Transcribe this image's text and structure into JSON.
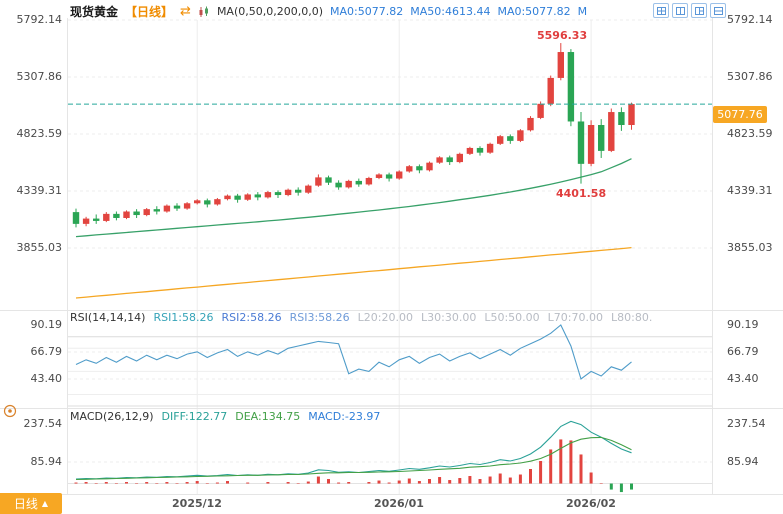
{
  "header": {
    "instrument": "现货黄金",
    "timeframe": "【日线】",
    "ma_truncated": "M",
    "layout_buttons": [
      "layout-2x2",
      "layout-2col",
      "layout-one-two",
      "layout-2row"
    ]
  },
  "icons": {
    "switch": "⇄",
    "up_triangle": "▲"
  },
  "footer": {
    "timeframe_button": "日线"
  },
  "colors": {
    "up": "#e2443f",
    "down": "#2aa554",
    "ma50": "#38a169",
    "ma200": "#f5a623",
    "price_line": "#26a69a",
    "accent": "#f7a723",
    "timeframe_text": "#f08c00",
    "annotation": "#e03e3e",
    "rsi": "#4f9cc9",
    "rsi1": "#36a3b8",
    "rsi2": "#4b7bd4",
    "rsi3": "#6f9bd8",
    "diff": "#2aa198",
    "dea": "#43a047",
    "hist_pos": "#e2443f",
    "hist_neg": "#2aa554",
    "legend_blue": "#2f7ed8",
    "level_gray": "#b8bcc4"
  },
  "chart_data": [
    {
      "type": "candlestick",
      "title": "现货黄金 日线",
      "ma_settings": "MA(0,50,0,200,0,0)",
      "ma_legend": [
        "MA0:5077.82",
        "MA50:4613.44",
        "MA0:5077.82"
      ],
      "yticks": [
        "5792.14",
        "5307.86",
        "4823.59",
        "4339.31",
        "3855.03"
      ],
      "ylim": [
        3345,
        5792.14
      ],
      "current_price": "5077.76",
      "annotations": [
        {
          "text": "5596.33",
          "type": "high",
          "index": 48
        },
        {
          "text": "4401.58",
          "type": "low",
          "index": 50
        }
      ],
      "x_axis": {
        "labels": [
          "2025/12",
          "2026/01",
          "2026/02"
        ],
        "tick_indices": [
          12,
          32,
          51
        ]
      },
      "candles": [
        [
          4160,
          4190,
          4030,
          4060
        ],
        [
          4060,
          4120,
          4040,
          4105
        ],
        [
          4105,
          4140,
          4060,
          4085
        ],
        [
          4085,
          4160,
          4075,
          4145
        ],
        [
          4145,
          4165,
          4090,
          4110
        ],
        [
          4110,
          4175,
          4100,
          4165
        ],
        [
          4165,
          4185,
          4110,
          4135
        ],
        [
          4135,
          4195,
          4125,
          4185
        ],
        [
          4185,
          4210,
          4140,
          4165
        ],
        [
          4165,
          4225,
          4155,
          4215
        ],
        [
          4215,
          4235,
          4170,
          4190
        ],
        [
          4190,
          4245,
          4180,
          4235
        ],
        [
          4235,
          4270,
          4225,
          4260
        ],
        [
          4260,
          4275,
          4200,
          4225
        ],
        [
          4225,
          4280,
          4215,
          4270
        ],
        [
          4270,
          4310,
          4260,
          4300
        ],
        [
          4300,
          4315,
          4240,
          4265
        ],
        [
          4265,
          4320,
          4255,
          4310
        ],
        [
          4310,
          4330,
          4260,
          4285
        ],
        [
          4285,
          4340,
          4275,
          4330
        ],
        [
          4330,
          4345,
          4280,
          4305
        ],
        [
          4305,
          4360,
          4295,
          4350
        ],
        [
          4350,
          4370,
          4300,
          4325
        ],
        [
          4325,
          4395,
          4315,
          4385
        ],
        [
          4385,
          4480,
          4375,
          4455
        ],
        [
          4455,
          4470,
          4390,
          4410
        ],
        [
          4410,
          4430,
          4350,
          4370
        ],
        [
          4370,
          4435,
          4360,
          4425
        ],
        [
          4425,
          4445,
          4375,
          4395
        ],
        [
          4395,
          4460,
          4385,
          4450
        ],
        [
          4450,
          4490,
          4440,
          4480
        ],
        [
          4480,
          4495,
          4420,
          4445
        ],
        [
          4445,
          4515,
          4435,
          4505
        ],
        [
          4505,
          4560,
          4495,
          4550
        ],
        [
          4550,
          4565,
          4490,
          4515
        ],
        [
          4515,
          4590,
          4505,
          4580
        ],
        [
          4580,
          4635,
          4570,
          4625
        ],
        [
          4625,
          4640,
          4560,
          4585
        ],
        [
          4585,
          4665,
          4575,
          4655
        ],
        [
          4655,
          4715,
          4645,
          4705
        ],
        [
          4705,
          4720,
          4640,
          4665
        ],
        [
          4665,
          4750,
          4655,
          4740
        ],
        [
          4740,
          4815,
          4730,
          4805
        ],
        [
          4805,
          4820,
          4740,
          4765
        ],
        [
          4765,
          4865,
          4755,
          4855
        ],
        [
          4855,
          4975,
          4845,
          4960
        ],
        [
          4960,
          5100,
          4950,
          5080
        ],
        [
          5080,
          5320,
          5060,
          5300
        ],
        [
          5300,
          5596.33,
          5280,
          5520
        ],
        [
          5520,
          5545,
          4890,
          4930
        ],
        [
          4930,
          5010,
          4401.58,
          4570
        ],
        [
          4570,
          4940,
          4550,
          4900
        ],
        [
          4900,
          4950,
          4620,
          4680
        ],
        [
          4680,
          5040,
          4670,
          5010
        ],
        [
          5010,
          5050,
          4850,
          4900
        ],
        [
          4900,
          5090,
          4860,
          5077.76
        ]
      ],
      "ma50": [
        3952,
        3959,
        3966,
        3973,
        3980,
        3987,
        3994,
        4001,
        4008,
        4015,
        4022,
        4029,
        4036,
        4043,
        4050,
        4057,
        4064,
        4071,
        4078,
        4085,
        4092,
        4100,
        4108,
        4116,
        4124,
        4133,
        4142,
        4151,
        4160,
        4169,
        4178,
        4188,
        4198,
        4208,
        4219,
        4230,
        4241,
        4253,
        4265,
        4277,
        4290,
        4303,
        4317,
        4331,
        4346,
        4362,
        4379,
        4397,
        4416,
        4436,
        4457,
        4479,
        4502,
        4537,
        4573,
        4613.44
      ],
      "ma200": [
        3430,
        3438,
        3446,
        3453,
        3461,
        3469,
        3477,
        3484,
        3492,
        3500,
        3508,
        3516,
        3523,
        3531,
        3539,
        3547,
        3554,
        3562,
        3570,
        3578,
        3586,
        3593,
        3601,
        3609,
        3617,
        3625,
        3632,
        3640,
        3648,
        3656,
        3663,
        3671,
        3679,
        3687,
        3695,
        3702,
        3710,
        3718,
        3726,
        3733,
        3741,
        3749,
        3757,
        3765,
        3772,
        3780,
        3788,
        3796,
        3803,
        3811,
        3819,
        3827,
        3835,
        3842,
        3850,
        3858
      ]
    },
    {
      "type": "line",
      "name": "RSI(14,14,14)",
      "legend": [
        "RSI1:58.26",
        "RSI2:58.26",
        "RSI3:58.26"
      ],
      "levels_legend": [
        "L20:20.00",
        "L30:30.00",
        "L50:50.00",
        "L70:70.00",
        "L80:80."
      ],
      "yticks": [
        "90.19",
        "66.79",
        "43.40"
      ],
      "levels": [
        20,
        30,
        50,
        70,
        80
      ],
      "values": [
        56,
        60,
        57,
        62,
        58,
        63,
        59,
        64,
        60,
        64,
        61,
        65,
        67,
        62,
        66,
        69,
        63,
        67,
        64,
        68,
        65,
        70,
        72,
        74,
        76,
        75,
        74,
        48,
        52,
        50,
        58,
        54,
        60,
        63,
        57,
        62,
        65,
        59,
        63,
        66,
        61,
        65,
        69,
        64,
        70,
        74,
        78,
        83,
        90.19,
        72,
        43.4,
        50,
        46,
        54,
        51,
        58.26
      ]
    },
    {
      "type": "macd",
      "name": "MACD(26,12,9)",
      "legend": [
        "DIFF:122.77",
        "DEA:134.75",
        "MACD:-23.97"
      ],
      "yticks": [
        "237.54",
        "85.94"
      ],
      "diff": [
        18,
        20,
        19,
        22,
        21,
        24,
        23,
        26,
        25,
        28,
        27,
        30,
        33,
        30,
        32,
        36,
        32,
        35,
        33,
        37,
        35,
        39,
        37,
        42,
        55,
        52,
        45,
        47,
        44,
        48,
        52,
        49,
        54,
        60,
        57,
        63,
        70,
        66,
        72,
        80,
        76,
        84,
        95,
        90,
        100,
        118,
        145,
        185,
        228,
        248,
        235,
        205,
        185,
        160,
        138,
        122.77
      ],
      "dea": [
        16,
        17,
        18,
        19,
        20,
        21,
        22,
        23,
        24,
        25,
        26,
        27,
        28,
        29,
        30,
        31,
        32,
        33,
        33,
        34,
        35,
        36,
        36,
        38,
        41,
        43,
        43,
        44,
        44,
        45,
        46,
        47,
        48,
        50,
        52,
        54,
        57,
        59,
        61,
        65,
        67,
        70,
        75,
        78,
        82,
        89,
        100,
        117,
        140,
        162,
        177,
        183,
        184,
        172,
        155,
        134.75
      ],
      "hist": [
        4,
        6,
        2,
        6,
        2,
        6,
        2,
        6,
        2,
        6,
        2,
        6,
        10,
        2,
        4,
        10,
        0,
        4,
        0,
        6,
        0,
        6,
        2,
        8,
        28,
        18,
        4,
        6,
        0,
        6,
        12,
        4,
        12,
        20,
        10,
        18,
        26,
        14,
        22,
        30,
        18,
        28,
        40,
        24,
        36,
        58,
        90,
        136,
        176,
        172,
        116,
        44,
        2,
        -24,
        -34,
        -23.97
      ]
    }
  ]
}
